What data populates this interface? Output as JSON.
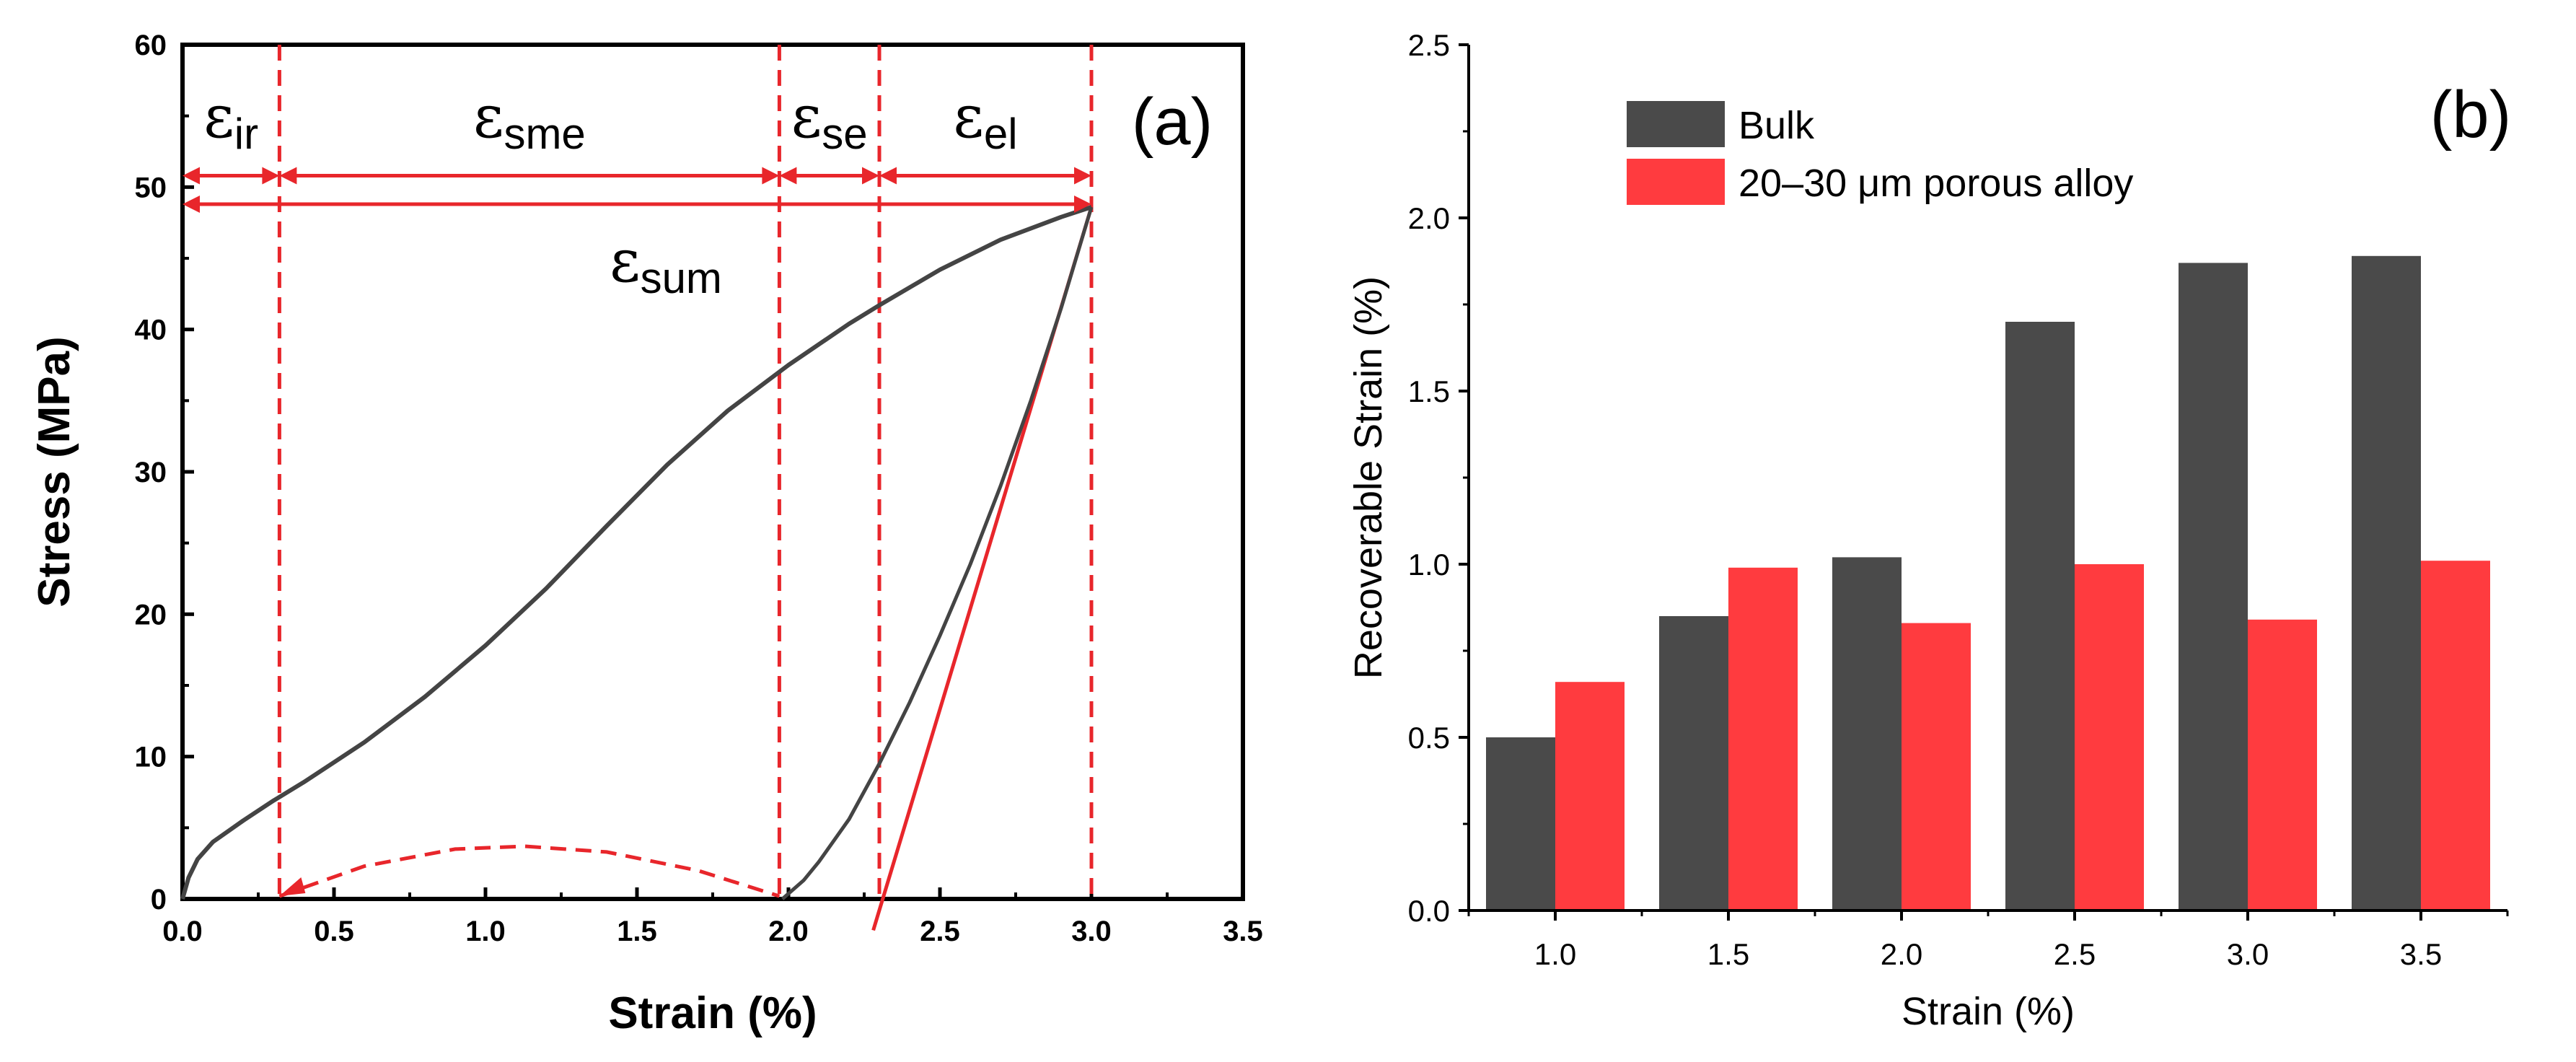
{
  "chart_data": [
    {
      "type": "line",
      "panel_label": "(a)",
      "xlabel": "Strain (%)",
      "ylabel": "Stress (MPa)",
      "xlim": [
        0,
        3.5
      ],
      "ylim": [
        0,
        60
      ],
      "xticks": [
        "0.0",
        "0.5",
        "1.0",
        "1.5",
        "2.0",
        "2.5",
        "3.0",
        "3.5"
      ],
      "yticks": [
        "0",
        "10",
        "20",
        "30",
        "40",
        "50",
        "60"
      ],
      "grid": false,
      "colors": {
        "curve": "#444444",
        "annotation": "#e8262b"
      },
      "loading_curve": {
        "x": [
          0,
          0.02,
          0.05,
          0.1,
          0.2,
          0.3,
          0.4,
          0.5,
          0.6,
          0.8,
          1.0,
          1.2,
          1.4,
          1.6,
          1.8,
          2.0,
          2.2,
          2.3,
          2.5,
          2.7,
          2.9,
          3.0
        ],
        "y": [
          0,
          1.5,
          2.8,
          4.0,
          5.5,
          6.9,
          8.2,
          9.6,
          11.0,
          14.2,
          17.8,
          21.8,
          26.2,
          30.5,
          34.3,
          37.5,
          40.4,
          41.7,
          44.2,
          46.3,
          47.9,
          48.6
        ]
      },
      "unloading_curve": {
        "x": [
          1.98,
          2.05,
          2.1,
          2.2,
          2.3,
          2.4,
          2.5,
          2.6,
          2.7,
          2.8,
          2.9,
          3.0
        ],
        "y": [
          0,
          1.3,
          2.6,
          5.6,
          9.5,
          13.8,
          18.5,
          23.5,
          29.0,
          35.0,
          41.5,
          48.6
        ]
      },
      "elastic_line": {
        "x": [
          2.28,
          3.0
        ],
        "y": [
          -2.2,
          48.6
        ]
      },
      "recovery_arc": {
        "x": [
          0.32,
          0.6,
          0.9,
          1.13,
          1.4,
          1.7,
          1.97
        ],
        "y": [
          0.2,
          2.3,
          3.5,
          3.7,
          3.3,
          2.0,
          0.2
        ]
      },
      "vertical_markers_x": [
        0.32,
        1.97,
        2.3,
        3.0
      ],
      "segments": [
        {
          "symbol": "ε",
          "sub": "ir",
          "x_from": 0.0,
          "x_to": 0.32
        },
        {
          "symbol": "ε",
          "sub": "sme",
          "x_from": 0.32,
          "x_to": 1.97
        },
        {
          "symbol": "ε",
          "sub": "se",
          "x_from": 1.97,
          "x_to": 2.3
        },
        {
          "symbol": "ε",
          "sub": "el",
          "x_from": 2.3,
          "x_to": 3.0
        }
      ],
      "segments_y": 50.8,
      "total": {
        "symbol": "ε",
        "sub": "sum",
        "x_from": 0.0,
        "x_to": 3.0,
        "y": 48.8
      }
    },
    {
      "type": "bar",
      "panel_label": "(b)",
      "xlabel": "Strain (%)",
      "ylabel": "Recoverable Strain (%)",
      "ylim": [
        0,
        2.5
      ],
      "yticks": [
        "0.0",
        "0.5",
        "1.0",
        "1.5",
        "2.0",
        "2.5"
      ],
      "categories": [
        "1.0",
        "1.5",
        "2.0",
        "2.5",
        "3.0",
        "3.5"
      ],
      "series": [
        {
          "name": "Bulk",
          "color": "#4a4a4a",
          "values": [
            0.5,
            0.85,
            1.02,
            1.7,
            1.87,
            1.89
          ]
        },
        {
          "name": "20–30 μm porous alloy",
          "color": "#ff3b3f",
          "values": [
            0.66,
            0.99,
            0.83,
            1.0,
            0.84,
            1.01
          ]
        }
      ],
      "legend_position": "top-left",
      "grid": false
    }
  ]
}
